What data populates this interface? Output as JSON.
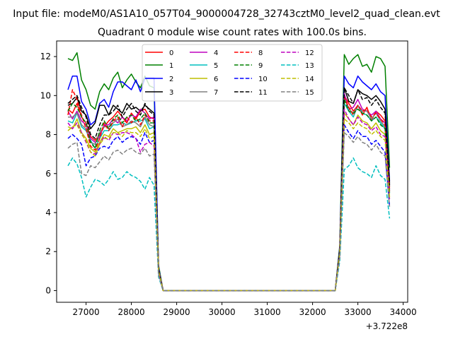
{
  "figure": {
    "suptitle": "Input file: modeM0/AS1A10_057T04_9000004728_32743cztM0_level2_quad_clean.evt"
  },
  "chart_data": {
    "type": "line",
    "title": "Quadrant 0 module wise count rates with 100.0s bins.",
    "xlabel": "",
    "ylabel": "",
    "x_offset_label": "+3.722e8",
    "xlim": [
      26350,
      34100
    ],
    "ylim": [
      -0.6,
      12.8
    ],
    "xticks": [
      27000,
      28000,
      29000,
      30000,
      31000,
      32000,
      33000,
      34000
    ],
    "yticks": [
      0,
      2,
      4,
      6,
      8,
      10,
      12
    ],
    "grid": false,
    "legend": {
      "placement": "top-center",
      "ncol": 4
    },
    "x": [
      26600,
      26700,
      26800,
      26900,
      27000,
      27100,
      27200,
      27300,
      27400,
      27500,
      27600,
      27700,
      27800,
      27900,
      28000,
      28100,
      28200,
      28300,
      28400,
      28500,
      28600,
      28700,
      32500,
      32600,
      32700,
      32800,
      32900,
      33000,
      33100,
      33200,
      33300,
      33400,
      33500,
      33600,
      33700
    ],
    "series": [
      {
        "name": "0",
        "color": "#ff0000",
        "dash": "solid",
        "values": [
          9.3,
          9.1,
          9.6,
          8.9,
          8.6,
          7.9,
          7.7,
          8.0,
          8.4,
          8.7,
          8.9,
          9.2,
          8.9,
          8.6,
          9.1,
          8.8,
          9.2,
          9.3,
          8.9,
          8.8,
          1.1,
          0,
          0,
          2.0,
          10.0,
          9.6,
          9.2,
          9.5,
          9.0,
          9.4,
          8.7,
          9.2,
          9.0,
          8.7,
          5.3
        ]
      },
      {
        "name": "1",
        "color": "#008000",
        "dash": "solid",
        "values": [
          11.9,
          11.8,
          12.2,
          10.8,
          10.3,
          9.5,
          9.3,
          10.2,
          10.6,
          10.3,
          10.9,
          11.2,
          10.4,
          10.8,
          11.1,
          10.7,
          10.4,
          11.0,
          10.5,
          10.4,
          1.3,
          0,
          0,
          2.3,
          12.1,
          11.6,
          11.9,
          12.1,
          11.5,
          11.6,
          11.2,
          12.0,
          11.9,
          11.5,
          6.3
        ]
      },
      {
        "name": "2",
        "color": "#0000ff",
        "dash": "solid",
        "values": [
          10.3,
          11.0,
          11.0,
          9.7,
          9.3,
          8.5,
          8.7,
          9.6,
          9.8,
          9.4,
          10.2,
          10.7,
          10.7,
          10.5,
          10.3,
          10.8,
          10.2,
          10.9,
          10.9,
          10.9,
          1.2,
          0,
          0,
          2.2,
          11.0,
          10.6,
          10.4,
          11.0,
          10.7,
          10.5,
          10.3,
          10.6,
          10.2,
          10.0,
          5.6
        ]
      },
      {
        "name": "3",
        "color": "#000000",
        "dash": "solid",
        "values": [
          9.5,
          9.6,
          9.9,
          9.2,
          9.0,
          8.3,
          8.6,
          9.5,
          9.5,
          9.0,
          9.5,
          9.3,
          9.1,
          9.6,
          9.3,
          9.4,
          9.2,
          9.5,
          9.3,
          9.1,
          1.1,
          0,
          0,
          2.1,
          10.4,
          9.7,
          9.6,
          10.3,
          10.1,
          10.0,
          9.8,
          10.0,
          9.7,
          9.3,
          5.5
        ]
      },
      {
        "name": "4",
        "color": "#bf00bf",
        "dash": "solid",
        "values": [
          9.2,
          8.8,
          9.2,
          8.7,
          8.5,
          7.8,
          7.6,
          7.9,
          8.5,
          8.5,
          8.8,
          8.6,
          8.9,
          8.7,
          9.0,
          8.9,
          9.3,
          9.1,
          8.8,
          8.9,
          1.1,
          0,
          0,
          2.0,
          10.1,
          9.3,
          9.4,
          9.8,
          9.3,
          9.2,
          9.0,
          9.2,
          8.8,
          8.6,
          5.2
        ]
      },
      {
        "name": "5",
        "color": "#00bfbf",
        "dash": "solid",
        "values": [
          8.7,
          8.6,
          9.1,
          8.4,
          8.2,
          7.7,
          7.3,
          7.8,
          8.2,
          8.2,
          8.5,
          8.5,
          8.6,
          8.5,
          8.6,
          8.7,
          8.7,
          8.8,
          8.3,
          8.4,
          1.0,
          0,
          0,
          1.9,
          9.6,
          9.2,
          8.9,
          9.5,
          9.1,
          9.0,
          8.7,
          8.9,
          8.6,
          8.3,
          5.0
        ]
      },
      {
        "name": "6",
        "color": "#bfbf00",
        "dash": "solid",
        "values": [
          8.4,
          8.3,
          8.8,
          8.1,
          7.8,
          7.3,
          7.1,
          7.6,
          8.0,
          7.9,
          8.3,
          8.1,
          8.2,
          8.3,
          8.3,
          8.4,
          8.1,
          8.5,
          8.0,
          8.1,
          1.0,
          0,
          0,
          1.9,
          9.1,
          8.8,
          8.5,
          9.0,
          8.7,
          8.6,
          8.3,
          8.6,
          8.2,
          8.0,
          4.8
        ]
      },
      {
        "name": "7",
        "color": "#808080",
        "dash": "solid",
        "values": [
          8.9,
          8.9,
          9.1,
          8.5,
          8.3,
          7.6,
          7.5,
          8.1,
          8.4,
          8.4,
          8.6,
          8.8,
          8.4,
          8.5,
          8.7,
          8.6,
          8.4,
          8.9,
          8.5,
          8.4,
          1.1,
          0,
          0,
          2.0,
          9.9,
          9.3,
          9.1,
          9.5,
          9.2,
          9.2,
          8.8,
          9.1,
          8.7,
          8.4,
          5.1
        ]
      },
      {
        "name": "8",
        "color": "#ff0000",
        "dash": "dashed",
        "values": [
          9.0,
          10.3,
          9.8,
          9.0,
          8.3,
          7.4,
          7.2,
          7.8,
          8.6,
          8.2,
          8.7,
          8.9,
          8.4,
          8.9,
          8.6,
          8.9,
          8.5,
          9.0,
          8.7,
          8.7,
          1.1,
          0,
          0,
          2.0,
          9.9,
          9.4,
          9.0,
          9.5,
          9.2,
          9.3,
          8.9,
          9.1,
          8.8,
          8.5,
          5.1
        ]
      },
      {
        "name": "9",
        "color": "#008000",
        "dash": "dashed",
        "values": [
          9.2,
          9.6,
          9.4,
          8.9,
          8.6,
          7.6,
          7.3,
          8.2,
          8.7,
          8.3,
          8.8,
          9.0,
          8.6,
          8.9,
          9.0,
          8.7,
          8.8,
          9.1,
          8.6,
          8.6,
          1.1,
          0,
          0,
          2.0,
          9.8,
          9.2,
          9.1,
          9.3,
          9.1,
          9.0,
          8.7,
          8.9,
          8.5,
          8.3,
          5.0
        ]
      },
      {
        "name": "10",
        "color": "#0000ff",
        "dash": "dashed",
        "values": [
          7.8,
          8.0,
          7.8,
          7.5,
          6.4,
          6.8,
          6.9,
          7.3,
          7.4,
          7.3,
          7.7,
          7.9,
          7.6,
          7.8,
          7.9,
          7.8,
          7.5,
          8.1,
          7.6,
          7.7,
          0.9,
          0,
          0,
          1.8,
          8.5,
          8.1,
          7.8,
          8.2,
          7.9,
          7.9,
          7.5,
          7.7,
          7.4,
          7.1,
          4.3
        ]
      },
      {
        "name": "11",
        "color": "#000000",
        "dash": "dashed",
        "values": [
          9.6,
          9.8,
          10.0,
          9.4,
          8.9,
          8.0,
          7.8,
          8.5,
          9.0,
          9.0,
          9.2,
          9.5,
          8.9,
          9.3,
          9.6,
          9.2,
          9.0,
          9.6,
          9.2,
          9.0,
          1.1,
          0,
          0,
          2.1,
          10.4,
          10.0,
          9.6,
          10.3,
          9.8,
          9.9,
          9.5,
          9.8,
          9.4,
          9.1,
          5.4
        ]
      },
      {
        "name": "12",
        "color": "#bf00bf",
        "dash": "dashed",
        "values": [
          8.6,
          8.3,
          8.6,
          8.1,
          7.6,
          7.1,
          7.0,
          7.5,
          7.9,
          7.7,
          8.1,
          8.0,
          8.1,
          8.1,
          8.0,
          7.8,
          7.1,
          7.5,
          7.6,
          7.4,
          1.0,
          0,
          0,
          1.9,
          9.3,
          8.8,
          8.5,
          8.9,
          8.6,
          8.5,
          8.2,
          8.4,
          8.0,
          7.9,
          4.7
        ]
      },
      {
        "name": "13",
        "color": "#00bfbf",
        "dash": "dashed",
        "values": [
          6.4,
          6.8,
          6.5,
          5.8,
          4.8,
          5.3,
          5.7,
          5.6,
          5.4,
          5.7,
          6.1,
          5.7,
          5.8,
          6.1,
          5.9,
          5.8,
          5.6,
          5.2,
          5.8,
          5.4,
          0.7,
          0,
          0,
          1.5,
          6.2,
          6.4,
          6.8,
          6.3,
          6.1,
          6.0,
          5.8,
          6.4,
          5.9,
          5.7,
          3.7
        ]
      },
      {
        "name": "14",
        "color": "#bfbf00",
        "dash": "dashed",
        "values": [
          8.2,
          8.4,
          8.5,
          8.0,
          7.7,
          7.1,
          6.9,
          7.5,
          7.8,
          7.8,
          8.1,
          8.1,
          7.9,
          8.2,
          8.1,
          8.1,
          7.9,
          8.3,
          7.8,
          7.9,
          1.0,
          0,
          0,
          1.9,
          8.8,
          8.6,
          8.3,
          8.6,
          8.4,
          8.3,
          8.0,
          8.2,
          7.9,
          7.7,
          4.7
        ]
      },
      {
        "name": "15",
        "color": "#808080",
        "dash": "dashed",
        "values": [
          7.3,
          7.5,
          7.6,
          6.0,
          5.9,
          6.4,
          6.3,
          6.6,
          6.9,
          6.7,
          7.1,
          7.2,
          7.0,
          7.2,
          7.3,
          7.1,
          7.0,
          7.3,
          6.9,
          7.0,
          0.8,
          0,
          0,
          1.7,
          8.1,
          7.9,
          7.6,
          7.9,
          7.6,
          7.5,
          7.2,
          7.5,
          7.1,
          6.9,
          4.3
        ]
      }
    ]
  }
}
